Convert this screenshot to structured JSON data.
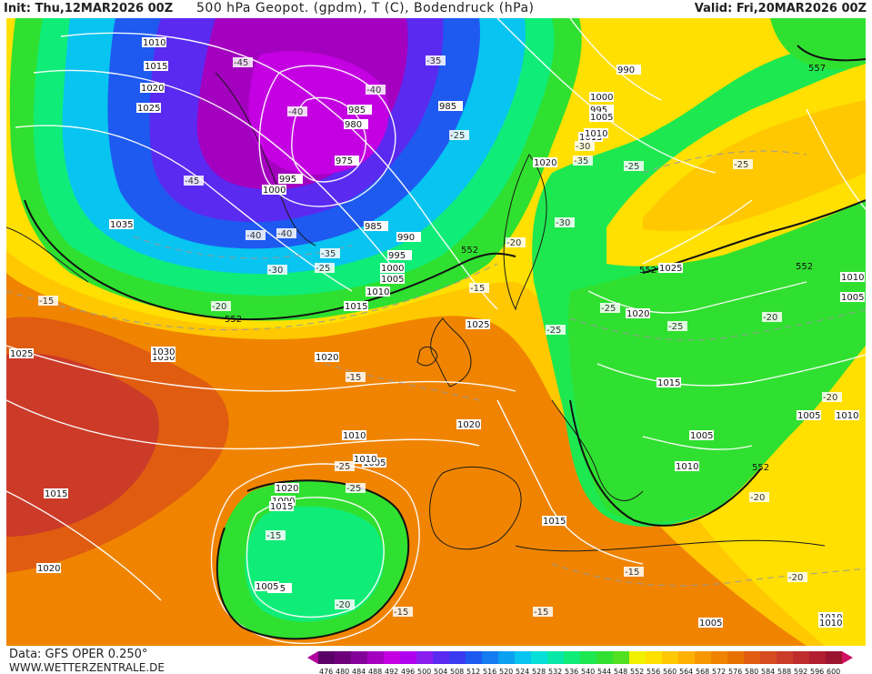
{
  "header": {
    "init": "Init: Thu,12MAR2026 00Z",
    "title": "500 hPa Geopot. (gpdm), T (C), Bodendruck (hPa)",
    "valid": "Valid: Fri,20MAR2026 00Z"
  },
  "footer": {
    "source": "Data: GFS OPER 0.250°",
    "url": "WWW.WETTERZENTRALE.DE"
  },
  "legend": {
    "values": [
      "476",
      "480",
      "484",
      "488",
      "492",
      "496",
      "500",
      "504",
      "508",
      "512",
      "516",
      "520",
      "524",
      "528",
      "532",
      "536",
      "540",
      "544",
      "548",
      "552",
      "556",
      "560",
      "564",
      "568",
      "572",
      "576",
      "580",
      "584",
      "588",
      "592",
      "596",
      "600"
    ],
    "colors": [
      "#5a0066",
      "#6e007c",
      "#84009a",
      "#a400c0",
      "#c400e2",
      "#b000f0",
      "#8a1ef0",
      "#5a2af0",
      "#3a3af0",
      "#1e5af0",
      "#147cf0",
      "#0ca0f0",
      "#08c4f0",
      "#06e0d8",
      "#06e8a8",
      "#10ec78",
      "#1ee850",
      "#30e030",
      "#50e020",
      "#f0f000",
      "#ffe000",
      "#ffc800",
      "#ffb000",
      "#f89800",
      "#f08400",
      "#e87000",
      "#e05c10",
      "#d84a20",
      "#cc3a28",
      "#c02c2c",
      "#b01e30",
      "#9c1430"
    ],
    "arrow_left_color": "#b000a0",
    "arrow_right_color": "#d01060"
  },
  "map": {
    "isobar_labels": [
      "1010",
      "1015",
      "1020",
      "1025",
      "1035",
      "1000",
      "995",
      "990",
      "985",
      "980",
      "975",
      "1005",
      "1030",
      "1025",
      "1020",
      "1015",
      "1010",
      "1005",
      "1000",
      "995",
      "990",
      "1025",
      "1020",
      "1015",
      "1010",
      "1005",
      "1010",
      "1005",
      "1000",
      "995",
      "985",
      "1020",
      "1015",
      "1010",
      "1005",
      "1010",
      "1015",
      "1020",
      "1025",
      "1030",
      "1020",
      "1015",
      "1010",
      "1025",
      "1020",
      "1015",
      "1010",
      "1005",
      "1010",
      "1005",
      "985",
      "1000",
      "995",
      "1005",
      "1010"
    ],
    "temp_labels": [
      "-45",
      "-40",
      "-40",
      "-45",
      "-40",
      "-40",
      "-35",
      "-30",
      "-35",
      "-25",
      "-25",
      "-30",
      "-20",
      "-15",
      "-15",
      "-15",
      "-20",
      "-25",
      "-25",
      "-25",
      "-30",
      "-20",
      "-25",
      "-20",
      "-20",
      "-15",
      "-15",
      "-15",
      "-20",
      "-25",
      "-25",
      "-20",
      "-15",
      "-35",
      "-25"
    ],
    "contour_552_label": "552",
    "contour_557_label": "557"
  }
}
